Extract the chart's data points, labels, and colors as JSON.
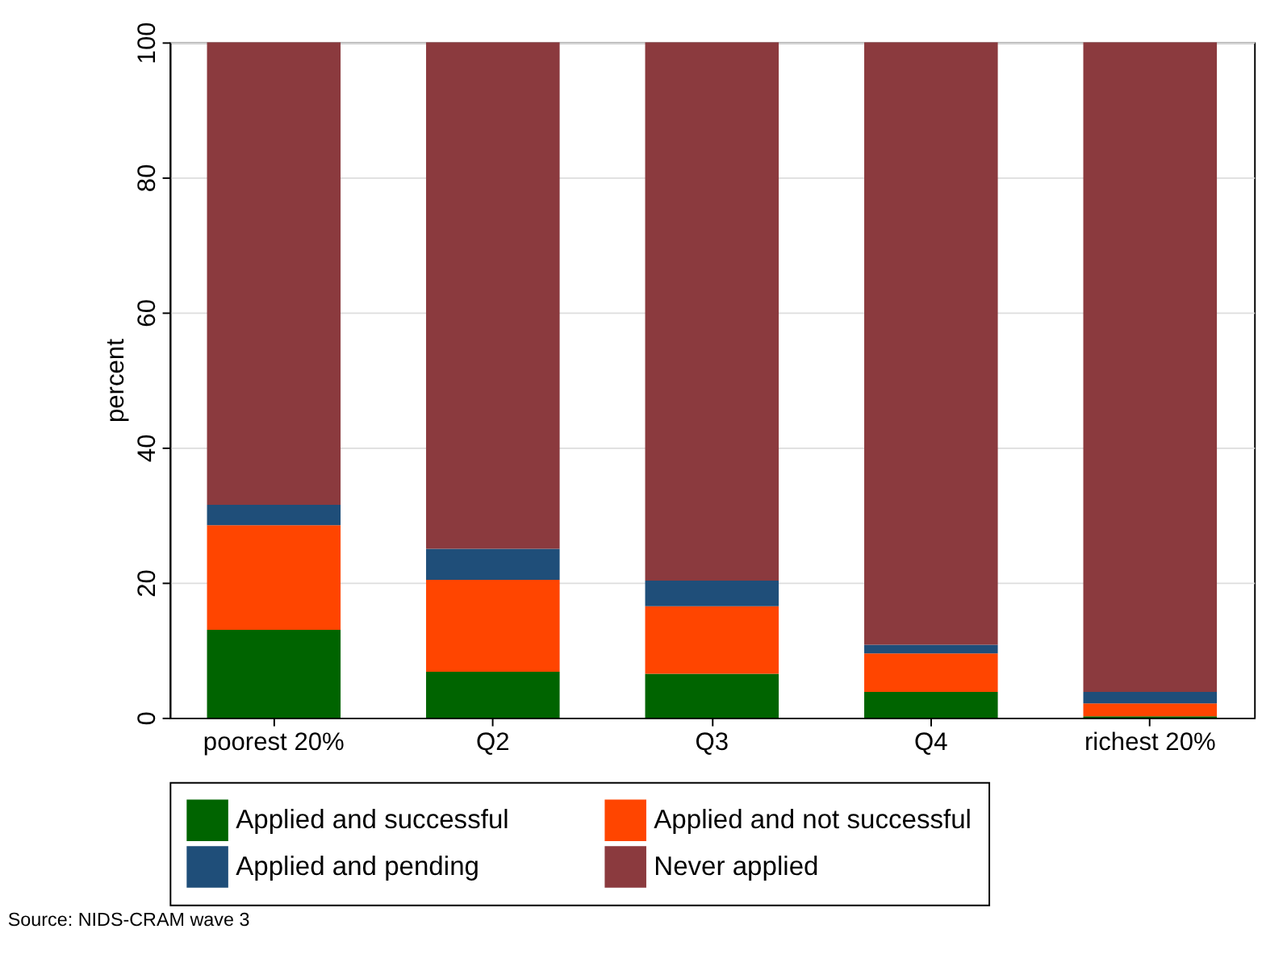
{
  "chart_data": {
    "type": "bar",
    "stacked": true,
    "ylabel": "percent",
    "categories": [
      "poorest 20%",
      "Q2",
      "Q3",
      "Q4",
      "richest 20%"
    ],
    "series": [
      {
        "name": "Applied and successful",
        "color": "#006400",
        "values": [
          13,
          6.8,
          6.5,
          3.8,
          0.2
        ]
      },
      {
        "name": "Applied and not successful",
        "color": "#ff4500",
        "values": [
          15.5,
          13.6,
          10,
          5.7,
          1.9
        ]
      },
      {
        "name": "Applied and pending",
        "color": "#1f4e79",
        "values": [
          3,
          4.6,
          3.8,
          1.3,
          1.7
        ]
      },
      {
        "name": "Never applied",
        "color": "#8b3a3e",
        "values": [
          68.5,
          75,
          79.7,
          89.2,
          96.2
        ]
      }
    ],
    "ylim": [
      0,
      100
    ],
    "yticks": [
      0,
      20,
      40,
      60,
      80,
      100
    ],
    "grid": "y",
    "legend": "bottom",
    "annotations": [
      "Source: NIDS-CRAM wave 3"
    ]
  }
}
